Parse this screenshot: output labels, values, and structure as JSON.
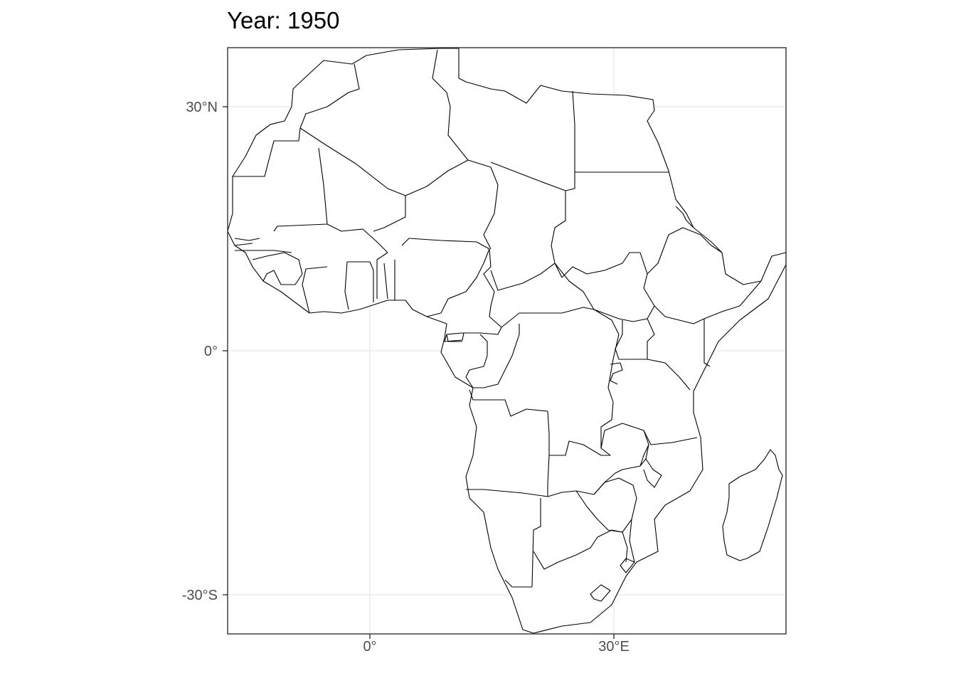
{
  "title": "Year: 1950",
  "map": {
    "region": "Africa",
    "projection": "longitude-latitude",
    "lon_range": [
      -17.6,
      51.4
    ],
    "lat_range": [
      -34.9,
      37.3
    ],
    "x_ticks": [
      {
        "lon": 0,
        "label": "0°"
      },
      {
        "lon": 30,
        "label": "30°E"
      }
    ],
    "y_ticks": [
      {
        "lat": 30,
        "label": "30°N"
      },
      {
        "lat": 0,
        "label": "0°"
      },
      {
        "lat": -30,
        "label": "-30°S"
      }
    ],
    "grid": true,
    "fill_color": "#ffffff",
    "border_color": "#000000"
  }
}
